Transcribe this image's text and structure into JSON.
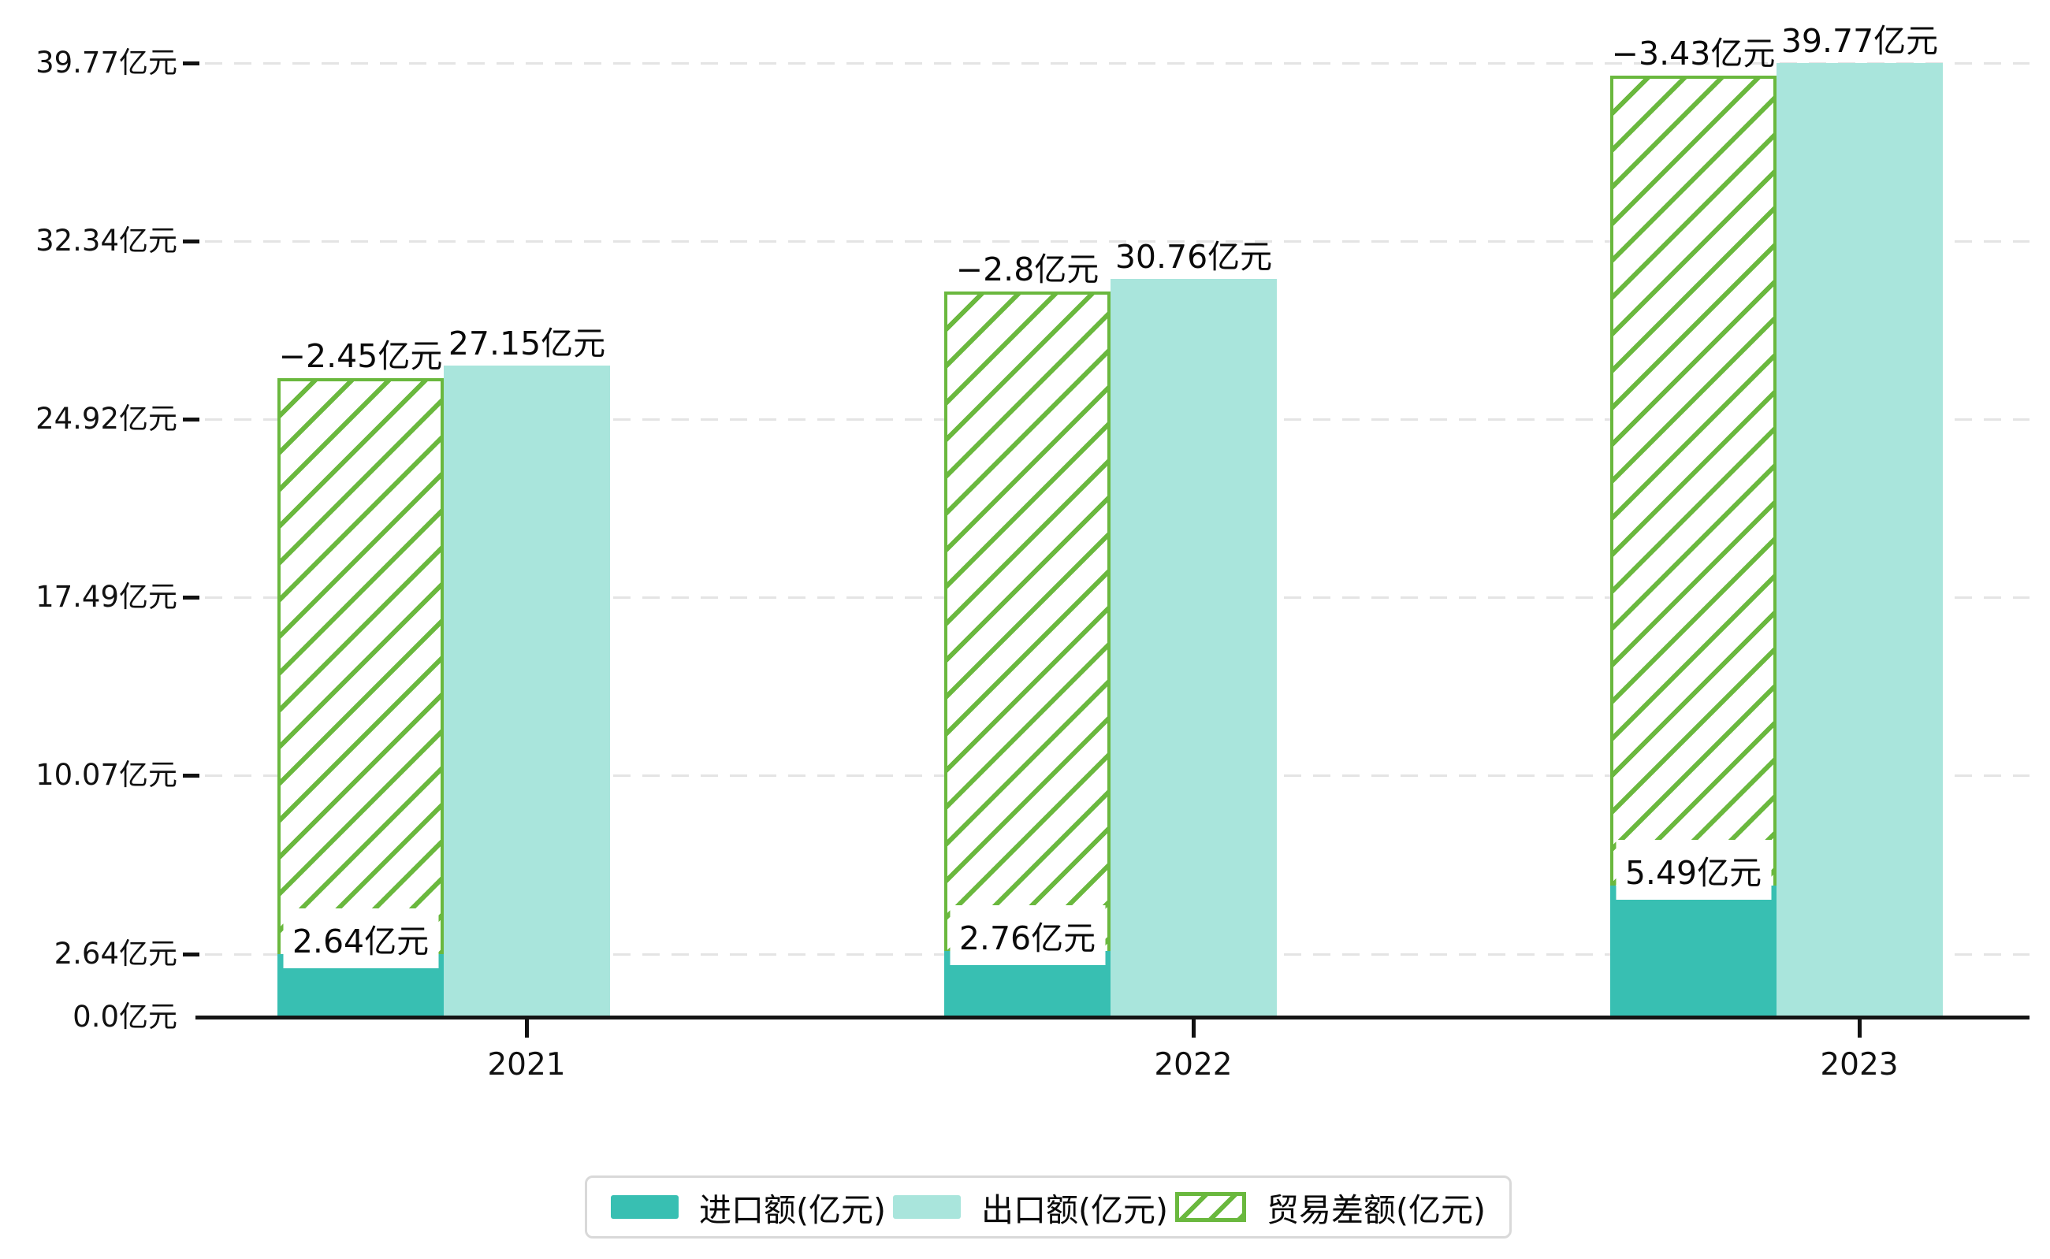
{
  "chart_data": {
    "type": "bar",
    "title": "",
    "categories": [
      "2021",
      "2022",
      "2023"
    ],
    "unit": "亿元",
    "series": [
      {
        "name": "进口额(亿元)",
        "values": [
          2.64,
          2.76,
          5.49
        ],
        "labels": [
          "2.64亿元",
          "2.76亿元",
          "5.49亿元"
        ],
        "color": "#38bfb2",
        "style": "solid"
      },
      {
        "name": "出口额(亿元)",
        "values": [
          27.15,
          30.76,
          39.77
        ],
        "labels": [
          "27.15亿元",
          "30.76亿元",
          "39.77亿元"
        ],
        "color": "#a9e5dc",
        "style": "solid"
      },
      {
        "name": "贸易差额(亿元)",
        "values": [
          -2.45,
          -2.8,
          -3.43
        ],
        "labels": [
          "−2.45亿元",
          "−2.8亿元",
          "−3.43亿元"
        ],
        "color": "#6ab83e",
        "style": "hatched",
        "drawn_from_series": 0,
        "drawn_to_series": 1
      }
    ],
    "y_ticks": [
      "0.0亿元",
      "2.64亿元",
      "10.07亿元",
      "17.49亿元",
      "24.92亿元",
      "32.34亿元",
      "39.77亿元"
    ],
    "y_tick_values": [
      0,
      2.64,
      10.07,
      17.49,
      24.92,
      32.34,
      39.77
    ],
    "ylim": [
      0,
      39.77
    ],
    "xlabel": "",
    "ylabel": "",
    "grid": "horizontal-dashed",
    "legend_position": "bottom",
    "colors": {
      "import_bar": "#38bfb2",
      "export_bar": "#a9e5dc",
      "hatch_green": "#6ab83e",
      "gridline": "#e4e4e4",
      "axis": "#141414",
      "text": "#0a0a0a",
      "legend_border": "#d9d9d9"
    }
  }
}
